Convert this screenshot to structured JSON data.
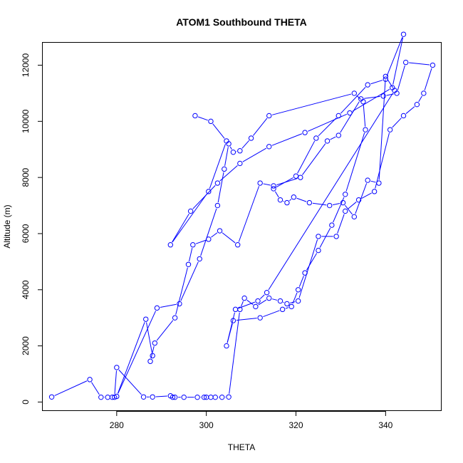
{
  "chart_data": {
    "type": "scatter",
    "title": "ATOM1 Southbound THETA",
    "xlabel": "THETA",
    "ylabel": "Altitude (m)",
    "xlim": [
      263.5,
      352.5
    ],
    "ylim": [
      -320,
      12800
    ],
    "xticks": [
      280,
      300,
      320,
      340
    ],
    "yticks": [
      0,
      2000,
      4000,
      6000,
      8000,
      10000,
      12000
    ],
    "grid": false,
    "legend": "none",
    "series_color": "#0000FF",
    "series": [
      {
        "style": "points-and-lines",
        "x": [
          265.5,
          274,
          276.5,
          278,
          279,
          279.5,
          280,
          286,
          288,
          292,
          292.5,
          293,
          295,
          298,
          299.5,
          300,
          301,
          302,
          303.5,
          305,
          307.5,
          308.5,
          311,
          314,
          316.5,
          318,
          320.5,
          325,
          329,
          331,
          334,
          337.5,
          341,
          344,
          347,
          348.5,
          350.5,
          344.5,
          342.5,
          339.5,
          334.5,
          329.5,
          327,
          321,
          315,
          312,
          307,
          303,
          300.5,
          297,
          296,
          293,
          288.5,
          287.5,
          288,
          286.5,
          280,
          289,
          294,
          298.5,
          302.5,
          304,
          305,
          306,
          307.5,
          310,
          314,
          333,
          335,
          335.5,
          331,
          328,
          325,
          322,
          320.5,
          319,
          317,
          312,
          306,
          304.5,
          306.5,
          311.5,
          313.5,
          342,
          340,
          338.5,
          336,
          333,
          330.5,
          327.5,
          323,
          319.5,
          318,
          316.5,
          315,
          320,
          324.5,
          329.5,
          336,
          340,
          344,
          341.5,
          332,
          322,
          314,
          307.5,
          302.5,
          296.5,
          292,
          300.5,
          304.5,
          301,
          297.5
        ],
        "y": [
          180,
          800,
          170,
          170,
          170,
          170,
          1230,
          180,
          180,
          220,
          170,
          170,
          170,
          170,
          170,
          170,
          170,
          170,
          170,
          180,
          3300,
          3700,
          3400,
          3700,
          3600,
          3500,
          3600,
          5900,
          5900,
          6800,
          7200,
          7500,
          9700,
          10200,
          10600,
          11000,
          12000,
          12100,
          11000,
          10900,
          10800,
          9500,
          9300,
          8000,
          7700,
          7800,
          5600,
          6100,
          5800,
          5600,
          4900,
          3000,
          2100,
          1450,
          1650,
          2950,
          200,
          3350,
          3500,
          5100,
          7000,
          8300,
          9200,
          8900,
          8950,
          9400,
          10200,
          11000,
          10700,
          9700,
          7400,
          6300,
          5400,
          4600,
          4000,
          3400,
          3300,
          3000,
          2900,
          2000,
          3300,
          3600,
          3900,
          11100,
          11600,
          7800,
          7900,
          6600,
          7100,
          7000,
          7100,
          7300,
          7100,
          7200,
          7600,
          8050,
          9400,
          10200,
          11300,
          11500,
          13100,
          11200,
          10300,
          9600,
          9100,
          8500,
          7800,
          6800,
          5600,
          7500,
          9300,
          10000,
          10200
        ]
      }
    ]
  }
}
